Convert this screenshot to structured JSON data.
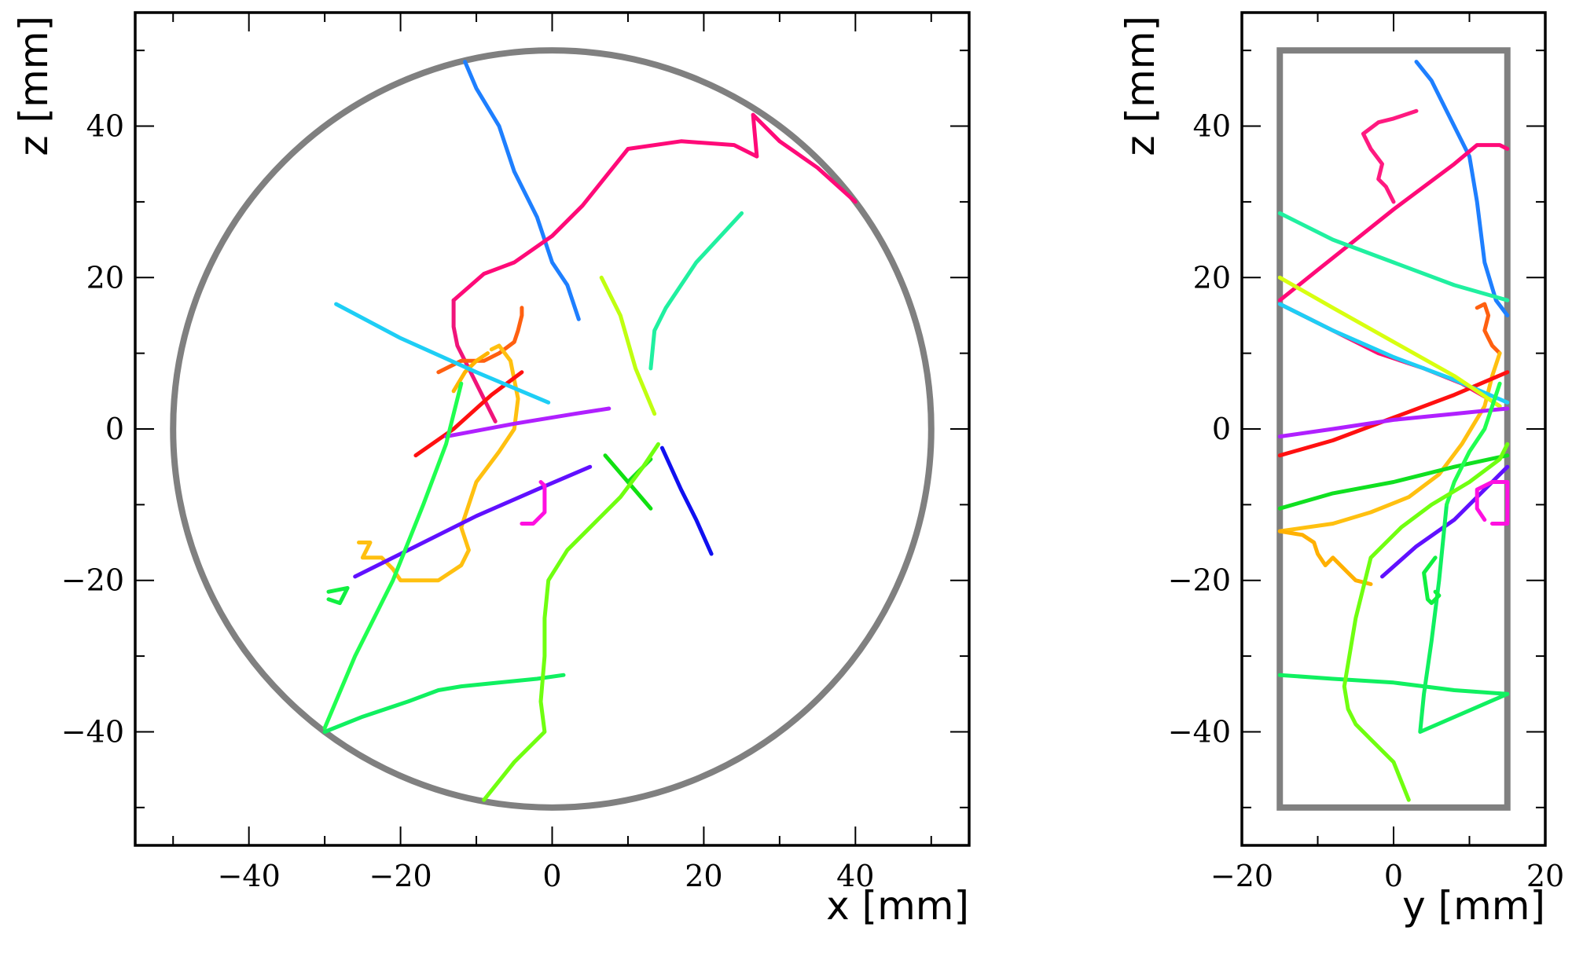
{
  "chart_data": [
    {
      "type": "line",
      "xlabel": "x [mm]",
      "ylabel": "z [mm]",
      "xlim": [
        -55,
        55
      ],
      "ylim": [
        -55,
        55
      ],
      "xticks": [
        -40,
        -20,
        0,
        20,
        40
      ],
      "yticks": [
        -40,
        -20,
        0,
        20,
        40
      ],
      "tick_labels_x": [
        "−40",
        "−20",
        "0",
        "20",
        "40"
      ],
      "tick_labels_y": [
        "−40",
        "−20",
        "0",
        "20",
        "40"
      ],
      "grid": false,
      "detector_outline": {
        "shape": "circle",
        "center": [
          0,
          0
        ],
        "radius": 50,
        "color": "#808080"
      },
      "series": [
        {
          "color": "#1e7fff",
          "x": [
            -11.5,
            -10,
            -7,
            -5,
            -2,
            0,
            2,
            3.5
          ],
          "y": [
            48.5,
            45,
            40,
            34,
            28,
            22,
            19,
            14.5
          ]
        },
        {
          "color": "#ff0a78",
          "x": [
            -13,
            -9,
            -5,
            0,
            4,
            10,
            17,
            24,
            27,
            26.5,
            30,
            35,
            40
          ],
          "y": [
            17,
            20.5,
            22,
            25.5,
            29.5,
            37,
            38,
            37.5,
            36,
            41.5,
            38,
            34.5,
            30
          ]
        },
        {
          "color": "#f0147a",
          "x": [
            -13,
            -13,
            -12.5,
            -11,
            -9,
            -7.5
          ],
          "y": [
            17,
            13.5,
            11,
            8,
            4,
            1
          ]
        },
        {
          "color": "#ff6010",
          "x": [
            -15,
            -12,
            -9,
            -7,
            -5,
            -4.5,
            -4,
            -4
          ],
          "y": [
            7.5,
            9,
            9,
            10,
            11.5,
            13,
            15,
            16
          ]
        },
        {
          "color": "#ffc010",
          "x": [
            -8,
            -7,
            -5.5,
            -4.5,
            -5,
            -7,
            -10,
            -11,
            -12,
            -11,
            -12,
            -15,
            -18,
            -20,
            -21,
            -22.5,
            -25,
            -24,
            -25.5
          ],
          "y": [
            10.5,
            11,
            9,
            4,
            0,
            -3,
            -7,
            -10,
            -13,
            -16,
            -18,
            -20,
            -20,
            -20,
            -18.5,
            -17,
            -17,
            -15,
            -15
          ]
        },
        {
          "color": "#ffb500",
          "x": [
            -13,
            -11.5,
            -10,
            -8.5
          ],
          "y": [
            5,
            7.5,
            9,
            10
          ]
        },
        {
          "color": "#ff1010",
          "x": [
            -18,
            -13,
            -8,
            -4
          ],
          "y": [
            -3.5,
            0,
            4.5,
            7.5
          ]
        },
        {
          "color": "#1ecef5",
          "x": [
            -28.5,
            -20,
            -10,
            -0.5
          ],
          "y": [
            16.5,
            12,
            7.5,
            3.5
          ]
        },
        {
          "color": "#b020ff",
          "x": [
            -14,
            -5,
            3,
            7.5
          ],
          "y": [
            -1,
            0.7,
            2,
            2.7
          ]
        },
        {
          "color": "#6010ff",
          "x": [
            -26,
            -18,
            -10,
            -2,
            5
          ],
          "y": [
            -19.5,
            -15.5,
            -11.5,
            -8,
            -5
          ]
        },
        {
          "color": "#ff10e0",
          "x": [
            -4,
            -2.5,
            -1,
            -1,
            -1.5
          ],
          "y": [
            -12.5,
            -12.5,
            -11,
            -7.5,
            -7
          ]
        },
        {
          "color": "#1010f0",
          "x": [
            14.5,
            17,
            19,
            21
          ],
          "y": [
            -2.5,
            -8,
            -12,
            -16.5
          ]
        },
        {
          "color": "#10e010",
          "x": [
            7,
            10,
            13
          ],
          "y": [
            -3.5,
            -7,
            -10.5
          ]
        },
        {
          "color": "#10e020",
          "x": [
            10,
            13
          ],
          "y": [
            -7,
            -4
          ]
        },
        {
          "color": "#c0ff10",
          "x": [
            6.5,
            9,
            11,
            13.5
          ],
          "y": [
            20,
            15,
            8,
            2
          ]
        },
        {
          "color": "#20f0a0",
          "x": [
            13,
            13.5,
            15,
            19,
            25
          ],
          "y": [
            8,
            13,
            16,
            22,
            28.5
          ]
        },
        {
          "color": "#10f060",
          "x": [
            -30,
            -25,
            -19,
            -15,
            -12,
            -7,
            -2,
            1.5
          ],
          "y": [
            -40,
            -38,
            -36,
            -34.5,
            -34,
            -33.5,
            -33,
            -32.5
          ]
        },
        {
          "color": "#20ff50",
          "x": [
            -30,
            -26,
            -21,
            -17,
            -14,
            -12
          ],
          "y": [
            -39.5,
            -30,
            -20,
            -10,
            -2,
            6
          ]
        },
        {
          "color": "#10f040",
          "x": [
            -29.5,
            -27,
            -27.5,
            -28,
            -29.5
          ],
          "y": [
            -21.5,
            -21,
            -22,
            -23,
            -22.5
          ]
        },
        {
          "color": "#70ff10",
          "x": [
            -9,
            -5,
            -1,
            -1.5,
            -1,
            -1,
            -0.5,
            2,
            5,
            9,
            12,
            14
          ],
          "y": [
            -49,
            -44,
            -40,
            -36,
            -30,
            -25,
            -20,
            -16,
            -13,
            -9,
            -5,
            -2
          ]
        }
      ]
    },
    {
      "type": "line",
      "xlabel": "y [mm]",
      "ylabel": "z [mm]",
      "xlim": [
        -20,
        20
      ],
      "ylim": [
        -55,
        55
      ],
      "xticks": [
        -20,
        0,
        20
      ],
      "yticks": [
        -40,
        -20,
        0,
        20,
        40
      ],
      "tick_labels_x": [
        "−20",
        "0",
        "20"
      ],
      "tick_labels_y": [
        "−40",
        "−20",
        "0",
        "20",
        "40"
      ],
      "grid": false,
      "detector_outline": {
        "shape": "rectangle",
        "y_range": [
          -15,
          15
        ],
        "z_range": [
          -50,
          50
        ],
        "color": "#808080"
      },
      "series": [
        {
          "color": "#1e7fff",
          "x": [
            3,
            5,
            7,
            10,
            11,
            11.5,
            12,
            13.5,
            15
          ],
          "y": [
            48.5,
            46,
            42,
            36,
            30,
            26,
            22,
            17,
            15
          ]
        },
        {
          "color": "#ff0a78",
          "x": [
            -15,
            -10,
            -5,
            0,
            4,
            8,
            11,
            14,
            15
          ],
          "y": [
            17,
            21,
            25,
            29,
            32,
            35,
            37.5,
            37.5,
            37
          ]
        },
        {
          "color": "#ff1a80",
          "x": [
            0,
            -1,
            -2,
            -1.5,
            -3,
            -4,
            -2,
            0,
            3
          ],
          "y": [
            30,
            32,
            33,
            35,
            37,
            39,
            40.5,
            41,
            42
          ]
        },
        {
          "color": "#ff1070",
          "x": [
            -15,
            -8,
            -2,
            4,
            9,
            12.5,
            14
          ],
          "y": [
            16.5,
            13,
            10,
            8,
            6,
            4,
            3
          ]
        },
        {
          "color": "#ff6010",
          "x": [
            11,
            12,
            12.5,
            12,
            12.5,
            13,
            14
          ],
          "y": [
            16,
            16.5,
            15,
            13,
            12,
            11,
            10
          ]
        },
        {
          "color": "#ffc010",
          "x": [
            -15,
            -8,
            -3,
            2,
            6,
            9,
            12,
            13,
            14
          ],
          "y": [
            -13.5,
            -12.5,
            -11,
            -9,
            -6,
            -2,
            3,
            7,
            10
          ]
        },
        {
          "color": "#ffb000",
          "x": [
            -15,
            -12,
            -10.5,
            -10,
            -9,
            -8,
            -6,
            -5,
            -3
          ],
          "y": [
            -13.5,
            -14,
            -15,
            -16.5,
            -18,
            -17,
            -19,
            -20,
            -20.5
          ]
        },
        {
          "color": "#ff1010",
          "x": [
            -15,
            -8,
            0,
            8,
            15
          ],
          "y": [
            -3.5,
            -1.5,
            1.5,
            4.5,
            7.5
          ]
        },
        {
          "color": "#1ecef5",
          "x": [
            -15,
            -8,
            0,
            8,
            15
          ],
          "y": [
            16.5,
            13,
            9.5,
            6.5,
            3.5
          ]
        },
        {
          "color": "#d8ff10",
          "x": [
            -15,
            -8,
            0,
            8,
            14
          ],
          "y": [
            20,
            16,
            11.5,
            7,
            3
          ]
        },
        {
          "color": "#b020ff",
          "x": [
            -15,
            -8,
            0,
            8,
            15
          ],
          "y": [
            -1,
            0,
            1.2,
            2,
            2.7
          ]
        },
        {
          "color": "#6010ff",
          "x": [
            -1.5,
            3,
            8,
            12,
            15
          ],
          "y": [
            -19.5,
            -15.5,
            -12,
            -8,
            -5
          ]
        },
        {
          "color": "#ff10e0",
          "x": [
            12,
            11,
            11,
            13,
            15,
            15,
            13
          ],
          "y": [
            -12,
            -10.5,
            -8,
            -7,
            -7,
            -12.5,
            -12.5
          ]
        },
        {
          "color": "#10e020",
          "x": [
            -15,
            -8,
            0,
            8,
            15
          ],
          "y": [
            -10.5,
            -8.5,
            -7,
            -5,
            -3.5
          ]
        },
        {
          "color": "#20f0a0",
          "x": [
            -15,
            -8,
            0,
            8,
            15
          ],
          "y": [
            28.5,
            25,
            22,
            19,
            17
          ]
        },
        {
          "color": "#10f060",
          "x": [
            -15,
            -8,
            0,
            8,
            15,
            3.5,
            4,
            5,
            6,
            7
          ],
          "y": [
            -32.5,
            -33,
            -33.5,
            -34.5,
            -35,
            -40,
            -35,
            -28,
            -20,
            -10
          ]
        },
        {
          "color": "#20ff50",
          "x": [
            7,
            8,
            10,
            12,
            13,
            14
          ],
          "y": [
            -10,
            -7,
            -3,
            0,
            3,
            6
          ]
        },
        {
          "color": "#10f040",
          "x": [
            5.5,
            4,
            4.5,
            5,
            6,
            5.5
          ],
          "y": [
            -17,
            -19,
            -22.5,
            -23,
            -22,
            -21.5
          ]
        },
        {
          "color": "#70ff10",
          "x": [
            2,
            0,
            -3,
            -5,
            -6,
            -6.5,
            -5,
            -3,
            1,
            5,
            10,
            14,
            15
          ],
          "y": [
            -49,
            -44,
            -41,
            -39,
            -37,
            -34,
            -25,
            -17,
            -13,
            -10,
            -7,
            -4,
            -2
          ]
        }
      ]
    }
  ]
}
